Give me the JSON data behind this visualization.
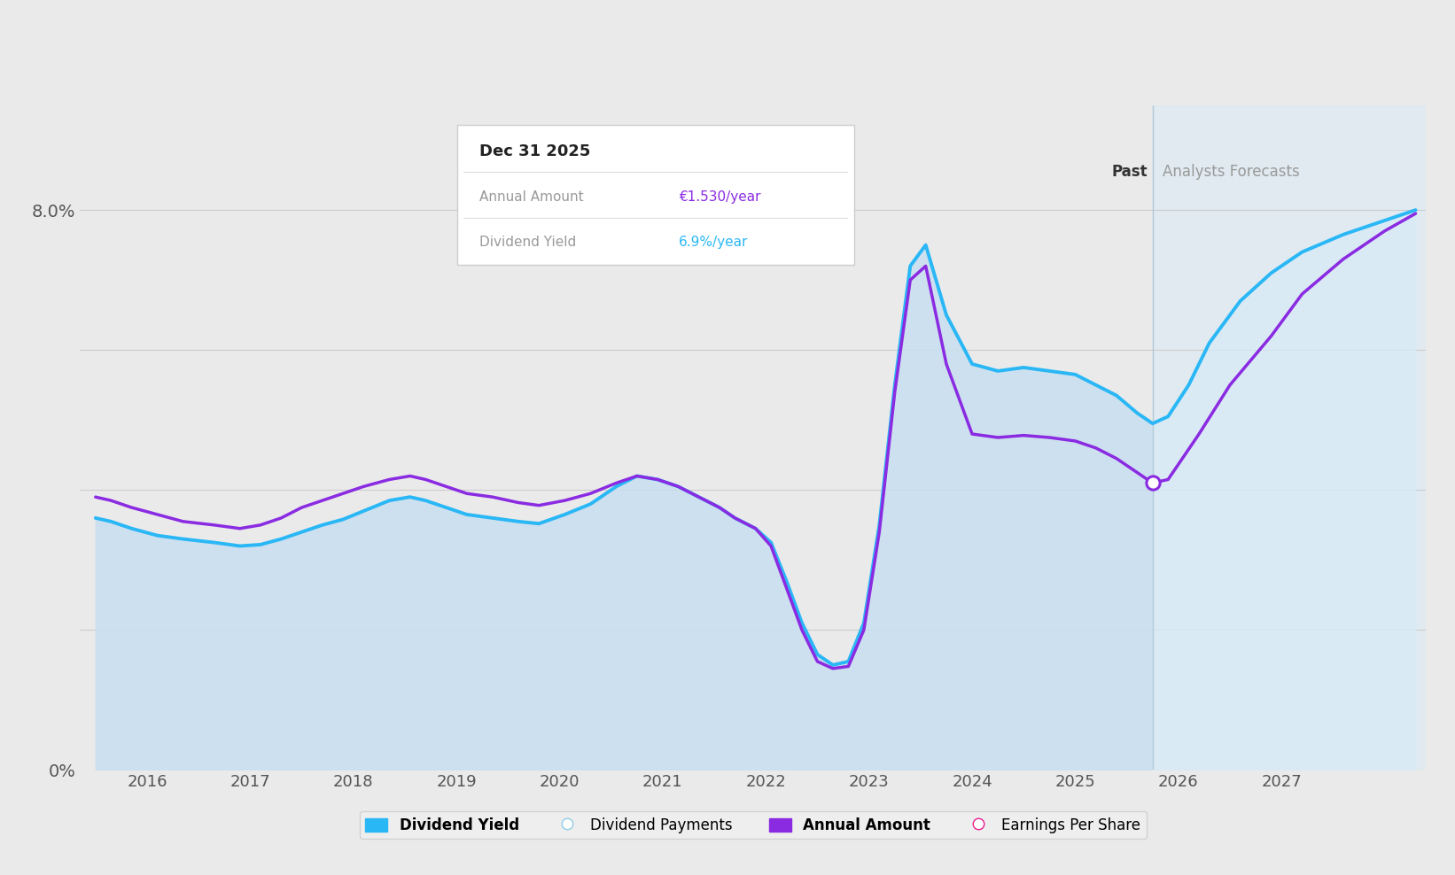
{
  "bg_color": "#eaeaea",
  "plot_bg_color": "#eaeaea",
  "ylim": [
    0,
    9.5
  ],
  "xlim_start": 2015.35,
  "xlim_end": 2028.4,
  "forecast_start": 2025.75,
  "past_label": "Past",
  "forecast_label": "Analysts Forecasts",
  "grid_color": "#cccccc",
  "blue_color": "#2ab7f6",
  "purple_color": "#8a2be2",
  "fill_past_color": "#c8dff0",
  "fill_forecast_color": "#d8ebf8",
  "xtick_positions": [
    2016,
    2017,
    2018,
    2019,
    2020,
    2021,
    2022,
    2023,
    2024,
    2025,
    2026,
    2027
  ],
  "tooltip_title": "Dec 31 2025",
  "tooltip_amount_label": "Annual Amount",
  "tooltip_amount_value": "€1.530/year",
  "tooltip_yield_label": "Dividend Yield",
  "tooltip_yield_value": "6.9%/year",
  "tooltip_amount_color": "#8a2be2",
  "tooltip_yield_color": "#2ab7f6",
  "dividend_yield_x": [
    2015.5,
    2015.65,
    2015.85,
    2016.1,
    2016.35,
    2016.65,
    2016.9,
    2017.1,
    2017.3,
    2017.5,
    2017.7,
    2017.9,
    2018.1,
    2018.35,
    2018.55,
    2018.7,
    2018.9,
    2019.1,
    2019.35,
    2019.6,
    2019.8,
    2020.05,
    2020.3,
    2020.55,
    2020.75,
    2020.95,
    2021.15,
    2021.35,
    2021.55,
    2021.7,
    2021.9,
    2022.05,
    2022.2,
    2022.35,
    2022.5,
    2022.65,
    2022.8,
    2022.95,
    2023.1,
    2023.25,
    2023.4,
    2023.55,
    2023.75,
    2024.0,
    2024.25,
    2024.5,
    2024.75,
    2025.0,
    2025.2,
    2025.4,
    2025.6,
    2025.75,
    2025.9,
    2026.1,
    2026.3,
    2026.6,
    2026.9,
    2027.2,
    2027.6,
    2028.0,
    2028.3
  ],
  "dividend_yield_y": [
    3.6,
    3.55,
    3.45,
    3.35,
    3.3,
    3.25,
    3.2,
    3.22,
    3.3,
    3.4,
    3.5,
    3.58,
    3.7,
    3.85,
    3.9,
    3.85,
    3.75,
    3.65,
    3.6,
    3.55,
    3.52,
    3.65,
    3.8,
    4.05,
    4.2,
    4.15,
    4.05,
    3.9,
    3.75,
    3.6,
    3.45,
    3.25,
    2.7,
    2.1,
    1.65,
    1.5,
    1.55,
    2.1,
    3.5,
    5.5,
    7.2,
    7.5,
    6.5,
    5.8,
    5.7,
    5.75,
    5.7,
    5.65,
    5.5,
    5.35,
    5.1,
    4.95,
    5.05,
    5.5,
    6.1,
    6.7,
    7.1,
    7.4,
    7.65,
    7.85,
    8.0
  ],
  "annual_amount_x": [
    2015.5,
    2015.65,
    2015.85,
    2016.1,
    2016.35,
    2016.65,
    2016.9,
    2017.1,
    2017.3,
    2017.5,
    2017.7,
    2017.9,
    2018.1,
    2018.35,
    2018.55,
    2018.7,
    2018.9,
    2019.1,
    2019.35,
    2019.6,
    2019.8,
    2020.05,
    2020.3,
    2020.55,
    2020.75,
    2020.95,
    2021.15,
    2021.35,
    2021.55,
    2021.7,
    2021.9,
    2022.05,
    2022.2,
    2022.35,
    2022.5,
    2022.65,
    2022.8,
    2022.95,
    2023.1,
    2023.25,
    2023.4,
    2023.55,
    2023.75,
    2024.0,
    2024.25,
    2024.5,
    2024.75,
    2025.0,
    2025.2,
    2025.4,
    2025.6,
    2025.75,
    2025.9,
    2026.2,
    2026.5,
    2026.9,
    2027.2,
    2027.6,
    2028.0,
    2028.3
  ],
  "annual_amount_y": [
    3.9,
    3.85,
    3.75,
    3.65,
    3.55,
    3.5,
    3.45,
    3.5,
    3.6,
    3.75,
    3.85,
    3.95,
    4.05,
    4.15,
    4.2,
    4.15,
    4.05,
    3.95,
    3.9,
    3.82,
    3.78,
    3.85,
    3.95,
    4.1,
    4.2,
    4.15,
    4.05,
    3.9,
    3.75,
    3.6,
    3.45,
    3.2,
    2.6,
    2.0,
    1.55,
    1.45,
    1.48,
    2.0,
    3.4,
    5.4,
    7.0,
    7.2,
    5.8,
    4.8,
    4.75,
    4.78,
    4.75,
    4.7,
    4.6,
    4.45,
    4.25,
    4.1,
    4.15,
    4.8,
    5.5,
    6.2,
    6.8,
    7.3,
    7.7,
    7.95
  ],
  "marker_x": 2025.75,
  "marker_y": 4.1,
  "legend_items": [
    {
      "label": "Dividend Yield",
      "color": "#2ab7f6",
      "filled": true
    },
    {
      "label": "Dividend Payments",
      "color": "#90cce8",
      "filled": false
    },
    {
      "label": "Annual Amount",
      "color": "#8a2be2",
      "filled": true
    },
    {
      "label": "Earnings Per Share",
      "color": "#e91e8c",
      "filled": false
    }
  ]
}
